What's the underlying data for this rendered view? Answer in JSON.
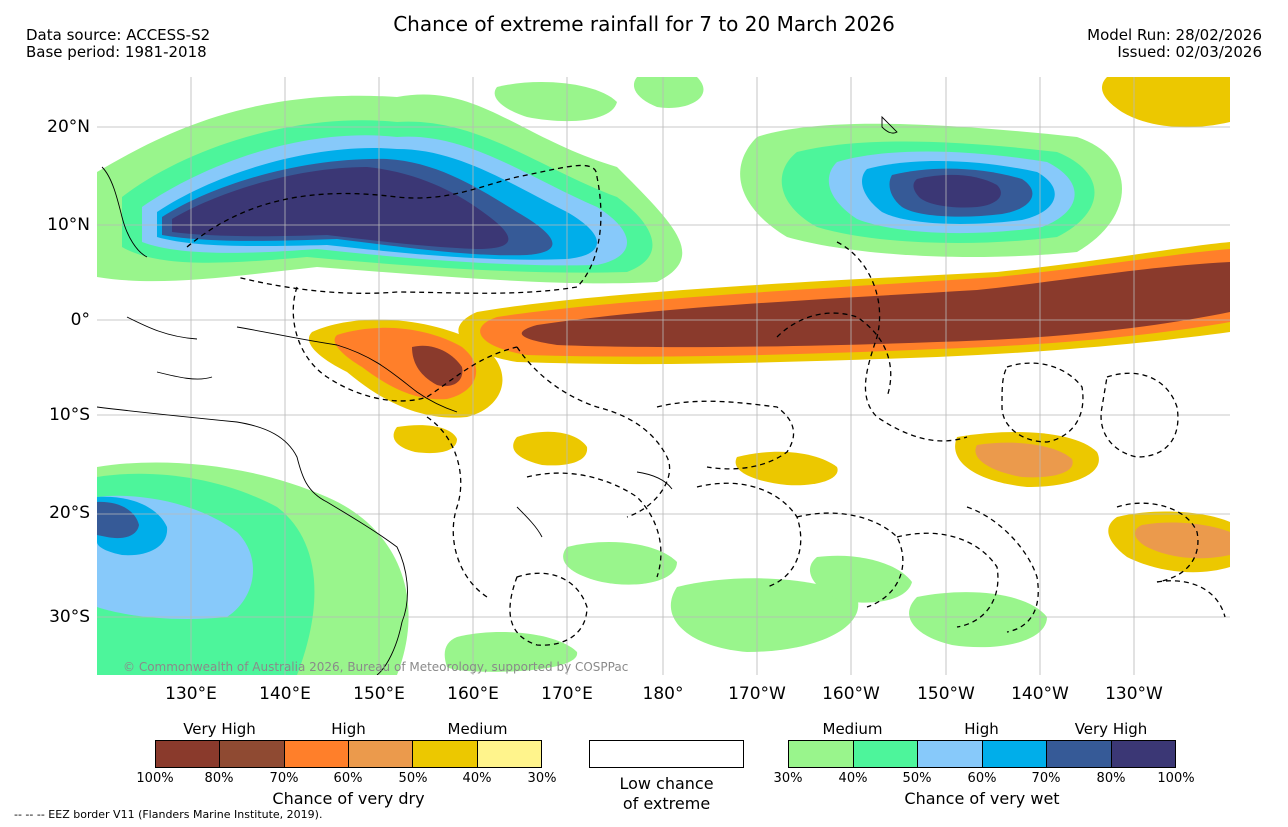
{
  "header": {
    "title": "Chance of extreme rainfall for 7 to 20 March 2026",
    "data_source": "Data source: ACCESS-S2",
    "base_period": "Base period: 1981-2018",
    "model_run": "Model Run: 28/02/2026",
    "issued": "Issued: 02/03/2026"
  },
  "map": {
    "lat_labels": [
      "20°N",
      "10°N",
      "0°",
      "10°S",
      "20°S",
      "30°S"
    ],
    "lon_labels": [
      "130°E",
      "140°E",
      "150°E",
      "160°E",
      "170°E",
      "180°",
      "170°W",
      "160°W",
      "150°W",
      "140°W",
      "130°W"
    ],
    "copyright": "© Commonwealth of Australia 2026, Bureau of Meteorology, supported by COSPPac",
    "colors": {
      "very_wet_max": "#3b3775",
      "dry_max": "#8a3a2c"
    }
  },
  "legend": {
    "dry": {
      "headings": [
        "Very High",
        "High",
        "Medium"
      ],
      "colors": [
        "#8a3a2c",
        "#8f4a32",
        "#ff7f2a",
        "#eb9a4c",
        "#ecc800",
        "#fff48c"
      ],
      "ticks": [
        "100%",
        "80%",
        "70%",
        "60%",
        "50%",
        "40%",
        "30%"
      ],
      "caption": "Chance of very dry"
    },
    "low": {
      "caption_line1": "Low chance",
      "caption_line2": "of extreme",
      "color": "#ffffff"
    },
    "wet": {
      "headings": [
        "Medium",
        "High",
        "Very High"
      ],
      "colors": [
        "#99f58c",
        "#4df59b",
        "#87c9fa",
        "#00aeea",
        "#365a97",
        "#3b3775"
      ],
      "ticks": [
        "30%",
        "40%",
        "50%",
        "60%",
        "70%",
        "80%",
        "100%"
      ],
      "caption": "Chance of very wet"
    }
  },
  "footer": {
    "eez_note": "--  --  -- EEZ border V11 (Flanders Marine Institute, 2019)."
  }
}
